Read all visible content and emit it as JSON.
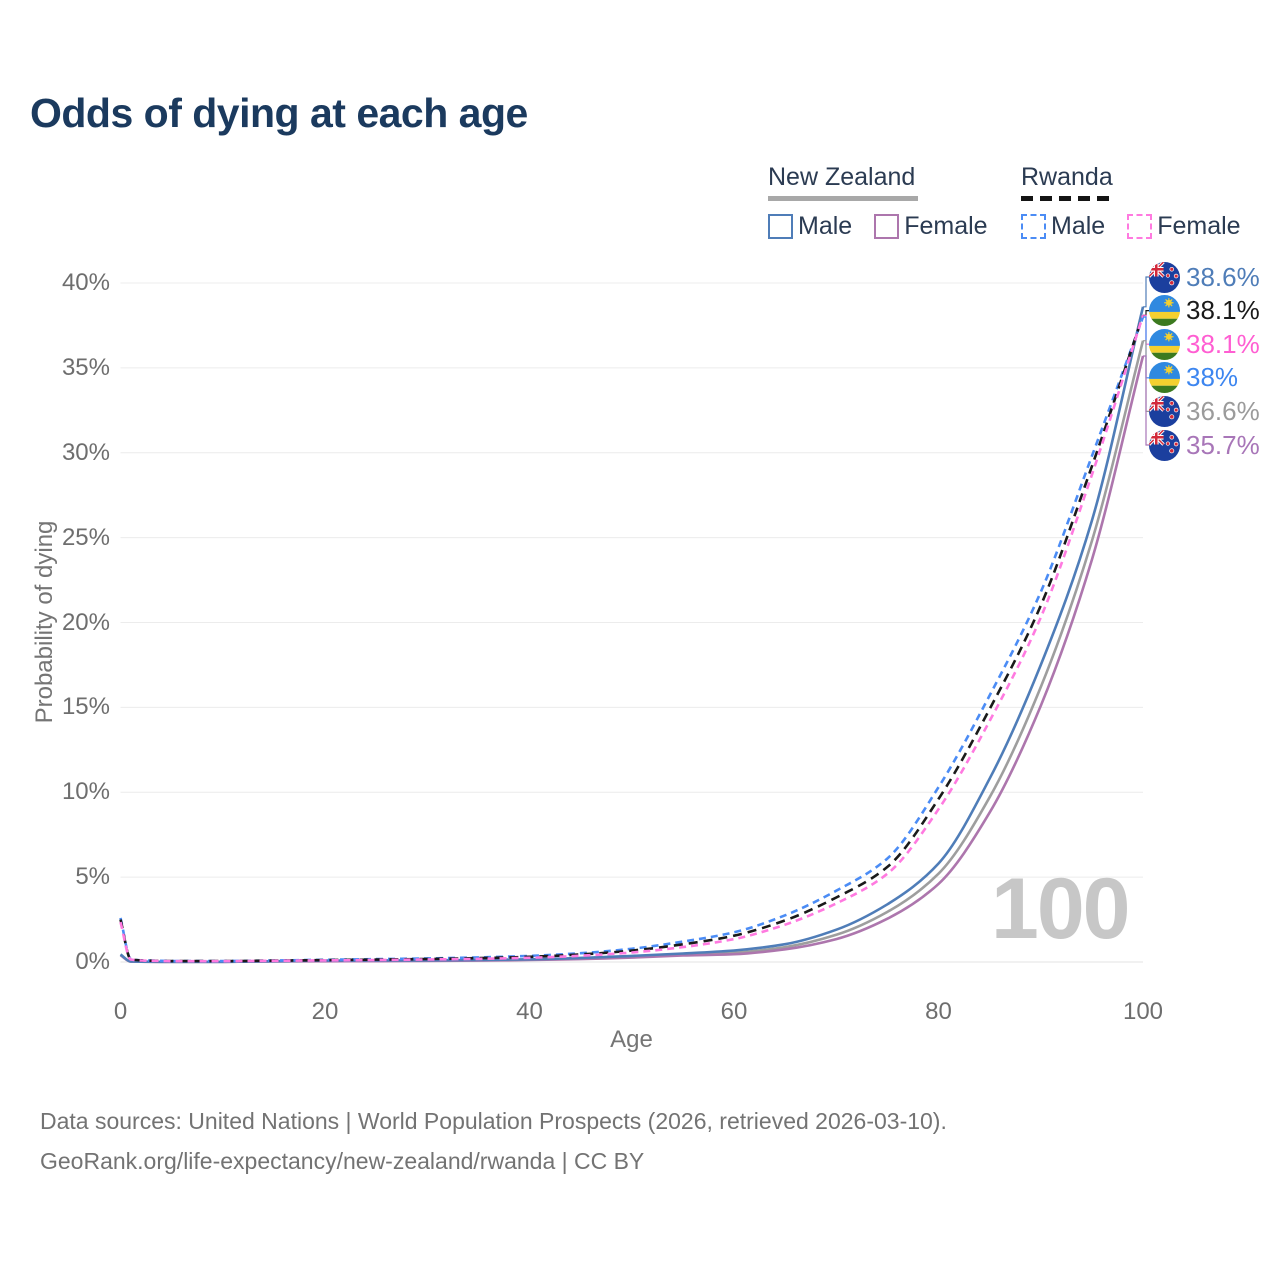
{
  "title": "Odds of dying at each age",
  "legend": {
    "groups": [
      {
        "name": "New Zealand",
        "line_style": "solid",
        "rule_color": "#a8a8a8",
        "items": [
          {
            "label": "Male",
            "color": "#4f7db8"
          },
          {
            "label": "Female",
            "color": "#ad76ad"
          }
        ]
      },
      {
        "name": "Rwanda",
        "line_style": "dashed",
        "rule_color": "#141414",
        "items": [
          {
            "label": "Male",
            "color": "#4b8cf5"
          },
          {
            "label": "Female",
            "color": "#ff7ae0"
          }
        ]
      }
    ]
  },
  "axes": {
    "y_title": "Probability of dying",
    "x_title": "Age",
    "y_ticks": [
      "40%",
      "35%",
      "30%",
      "25%",
      "20%",
      "15%",
      "10%",
      "5%",
      "0%"
    ],
    "x_ticks": [
      "0",
      "20",
      "40",
      "60",
      "80",
      "100"
    ]
  },
  "watermark": "100",
  "end_labels": [
    {
      "text": "38.6%",
      "value_pct": 38.6,
      "color": "#4f7db8",
      "flag": "nz",
      "series": "New Zealand Male"
    },
    {
      "text": "38.1%",
      "value_pct": 38.1,
      "color": "#1a1a1a",
      "flag": "rw",
      "series": "Rwanda Both sexes"
    },
    {
      "text": "38.1%",
      "value_pct": 38.1,
      "color": "#ff5ed2",
      "flag": "rw",
      "series": "Rwanda Female"
    },
    {
      "text": "38%",
      "value_pct": 38.0,
      "color": "#3d86f0",
      "flag": "rw",
      "series": "Rwanda Male"
    },
    {
      "text": "36.6%",
      "value_pct": 36.6,
      "color": "#9b9b9b",
      "flag": "nz",
      "series": "New Zealand Both sexes"
    },
    {
      "text": "35.7%",
      "value_pct": 35.7,
      "color": "#a876b8",
      "flag": "nz",
      "series": "New Zealand Female"
    }
  ],
  "footer": {
    "line1": "Data sources: United Nations | World Population Prospects (2026, retrieved 2026-03-10).",
    "line2": "GeoRank.org/life-expectancy/new-zealand/rwanda | CC BY"
  },
  "chart_data": {
    "type": "line",
    "title": "Odds of dying at each age",
    "xlabel": "Age",
    "ylabel": "Probability of dying",
    "xlim": [
      0,
      100
    ],
    "ylim_pct": [
      0,
      40
    ],
    "grid": true,
    "legend_position": "top-right",
    "x": [
      0,
      1,
      2,
      3,
      5,
      10,
      15,
      20,
      25,
      30,
      35,
      40,
      45,
      50,
      55,
      60,
      65,
      70,
      75,
      80,
      85,
      90,
      95,
      100
    ],
    "series": [
      {
        "name": "New Zealand Male",
        "color": "#4f7db8",
        "dash": null,
        "end_label": "38.6%",
        "values_pct": [
          0.45,
          0.03,
          0.02,
          0.015,
          0.012,
          0.012,
          0.045,
          0.08,
          0.09,
          0.1,
          0.12,
          0.16,
          0.24,
          0.36,
          0.5,
          0.68,
          1.05,
          1.9,
          3.4,
          5.8,
          10.8,
          17.5,
          26.0,
          38.6
        ]
      },
      {
        "name": "New Zealand Female",
        "color": "#ad76ad",
        "dash": null,
        "end_label": "35.7%",
        "values_pct": [
          0.4,
          0.025,
          0.016,
          0.012,
          0.009,
          0.009,
          0.027,
          0.042,
          0.05,
          0.06,
          0.08,
          0.115,
          0.17,
          0.26,
          0.38,
          0.46,
          0.75,
          1.35,
          2.55,
          4.6,
          8.8,
          15.1,
          23.7,
          35.7
        ]
      },
      {
        "name": "New Zealand Both sexes",
        "color": "#9e9e9e",
        "dash": null,
        "end_label": "36.6%",
        "values_pct": [
          0.42,
          0.028,
          0.018,
          0.013,
          0.01,
          0.01,
          0.036,
          0.06,
          0.07,
          0.08,
          0.1,
          0.14,
          0.205,
          0.31,
          0.44,
          0.55,
          0.88,
          1.6,
          2.95,
          5.2,
          9.7,
          16.2,
          24.8,
          36.6
        ]
      },
      {
        "name": "Rwanda Male",
        "color": "#4b8cf5",
        "dash": "7 5",
        "end_label": "38%",
        "values_pct": [
          2.6,
          0.18,
          0.1,
          0.08,
          0.06,
          0.06,
          0.09,
          0.13,
          0.17,
          0.21,
          0.27,
          0.36,
          0.52,
          0.78,
          1.2,
          1.75,
          2.75,
          4.2,
          6.1,
          10.3,
          15.7,
          21.8,
          29.8,
          38.0
        ]
      },
      {
        "name": "Rwanda Female",
        "color": "#ff7ae0",
        "dash": "7 5",
        "end_label": "38.1%",
        "values_pct": [
          2.35,
          0.15,
          0.09,
          0.07,
          0.05,
          0.05,
          0.07,
          0.095,
          0.115,
          0.145,
          0.185,
          0.25,
          0.37,
          0.56,
          0.88,
          1.35,
          2.2,
          3.45,
          5.2,
          9.0,
          14.2,
          20.3,
          28.7,
          38.1
        ]
      },
      {
        "name": "Rwanda Both sexes",
        "color": "#1a1a1a",
        "dash": "9 6",
        "end_label": "38.1%",
        "values_pct": [
          2.5,
          0.165,
          0.095,
          0.075,
          0.055,
          0.055,
          0.08,
          0.112,
          0.142,
          0.178,
          0.228,
          0.305,
          0.445,
          0.67,
          1.04,
          1.55,
          2.45,
          3.8,
          5.6,
          9.6,
          14.9,
          21.0,
          29.2,
          38.1
        ]
      }
    ]
  }
}
